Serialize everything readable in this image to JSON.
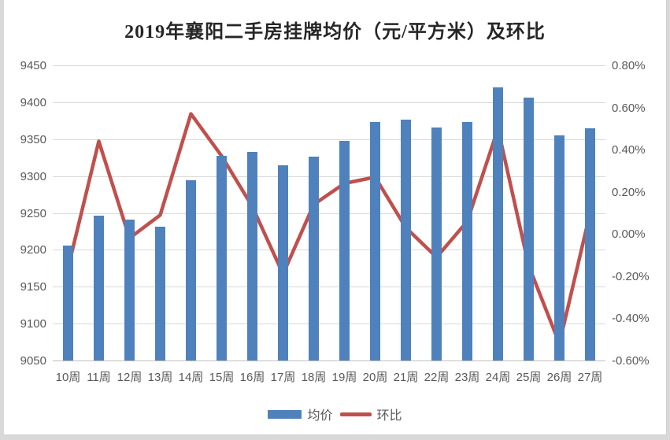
{
  "page": {
    "background_color": "#d9d9d9",
    "panel_color": "#ffffff"
  },
  "chart_data": {
    "type": "combo-bar-line",
    "title": "2019年襄阳二手房挂牌均价（元/平方米）及环比",
    "categories": [
      "10周",
      "11周",
      "12周",
      "13周",
      "14周",
      "15周",
      "16周",
      "17周",
      "18周",
      "19周",
      "20周",
      "21周",
      "22周",
      "23周",
      "24周",
      "25周",
      "26周",
      "27周"
    ],
    "series": [
      {
        "name": "均价",
        "type": "bar",
        "axis": "left",
        "color": "#4F81BD",
        "values": [
          9206,
          9246,
          9241,
          9231,
          9294,
          9327,
          9333,
          9315,
          9326,
          9348,
          9373,
          9376,
          9366,
          9373,
          9420,
          9406,
          9355,
          9365
        ]
      },
      {
        "name": "环比",
        "type": "line",
        "axis": "right",
        "color": "#C0504D",
        "values": [
          -0.16,
          0.44,
          -0.02,
          0.09,
          0.57,
          0.37,
          0.13,
          -0.19,
          0.14,
          0.24,
          0.27,
          0.03,
          -0.11,
          0.06,
          0.5,
          -0.15,
          -0.52,
          0.1
        ]
      }
    ],
    "left_axis": {
      "min": 9050,
      "max": 9450,
      "step": 50,
      "ticks": [
        "9450",
        "9400",
        "9350",
        "9300",
        "9250",
        "9200",
        "9150",
        "9100",
        "9050"
      ]
    },
    "right_axis": {
      "min": -0.6,
      "max": 0.8,
      "step": 0.2,
      "ticks": [
        "0.80%",
        "0.60%",
        "0.40%",
        "0.20%",
        "0.00%",
        "-0.20%",
        "-0.40%",
        "-0.60%"
      ]
    },
    "grid": true,
    "legend_position": "bottom",
    "gridline_color": "#d9d9d9",
    "axis_text_color": "#595959"
  }
}
